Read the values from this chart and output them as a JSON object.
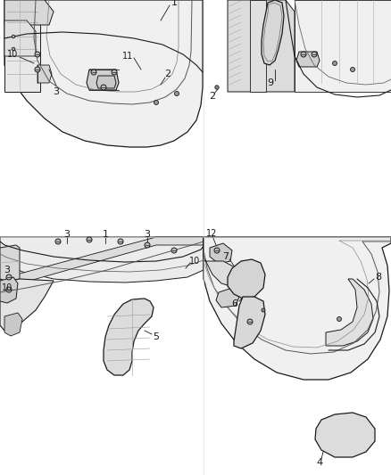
{
  "background_color": "#ffffff",
  "line_color": "#1a1a1a",
  "light_gray": "#c8c8c8",
  "mid_gray": "#a0a0a0",
  "dark_gray": "#555555",
  "fill_light": "#f0f0f0",
  "fill_mid": "#e0e0e0",
  "fill_dark": "#cccccc",
  "label_fontsize": 7,
  "lw_main": 0.9,
  "lw_thin": 0.5,
  "lw_thick": 1.2
}
